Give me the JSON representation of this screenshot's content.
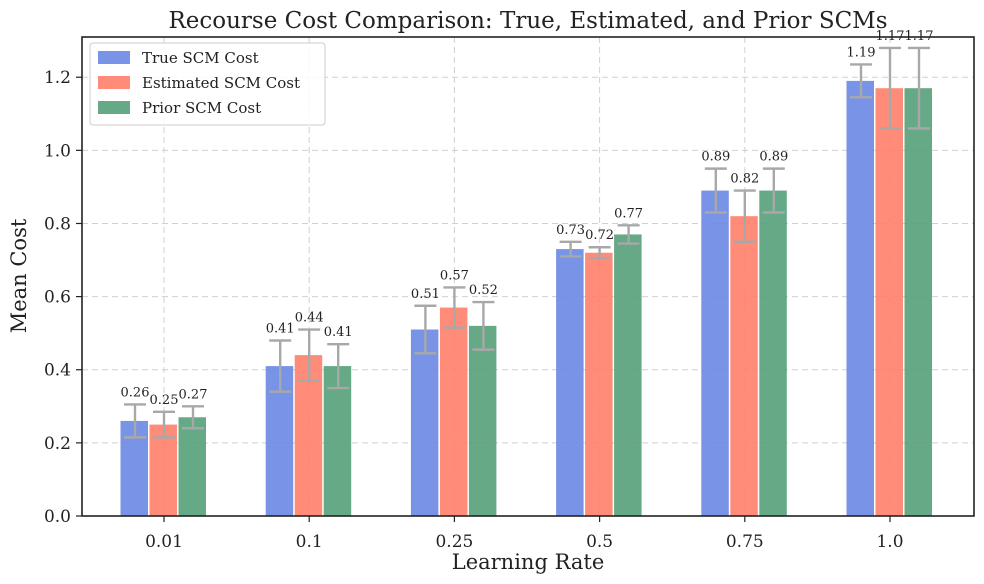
{
  "chart_data": {
    "type": "bar",
    "title": "Recourse Cost Comparison: True, Estimated, and Prior SCMs",
    "xlabel": "Learning Rate",
    "ylabel": "Mean Cost",
    "categories": [
      "0.01",
      "0.1",
      "0.25",
      "0.5",
      "0.75",
      "1.0"
    ],
    "ylim": [
      0,
      1.31
    ],
    "yticks": [
      "0.0",
      "0.2",
      "0.4",
      "0.6",
      "0.8",
      "1.0",
      "1.2"
    ],
    "grid": true,
    "legend_position": "top-left",
    "series": [
      {
        "name": "True SCM Cost",
        "color": "#6a87e3",
        "values": [
          0.26,
          0.41,
          0.51,
          0.73,
          0.89,
          1.19
        ],
        "labels": [
          "0.26",
          "0.41",
          "0.51",
          "0.73",
          "0.89",
          "1.19"
        ],
        "error": [
          0.045,
          0.07,
          0.065,
          0.02,
          0.06,
          0.045
        ]
      },
      {
        "name": "Estimated SCM Cost",
        "color": "#ff7f69",
        "values": [
          0.25,
          0.44,
          0.57,
          0.72,
          0.82,
          1.17
        ],
        "labels": [
          "0.25",
          "0.44",
          "0.57",
          "0.72",
          "0.82",
          "1.17"
        ],
        "error": [
          0.035,
          0.07,
          0.055,
          0.015,
          0.07,
          0.11
        ]
      },
      {
        "name": "Prior SCM Cost",
        "color": "#55a07a",
        "values": [
          0.27,
          0.41,
          0.52,
          0.77,
          0.89,
          1.17
        ],
        "labels": [
          "0.27",
          "0.41",
          "0.52",
          "0.77",
          "0.89",
          "1.17"
        ],
        "error": [
          0.03,
          0.06,
          0.065,
          0.025,
          0.06,
          0.11
        ]
      }
    ]
  }
}
